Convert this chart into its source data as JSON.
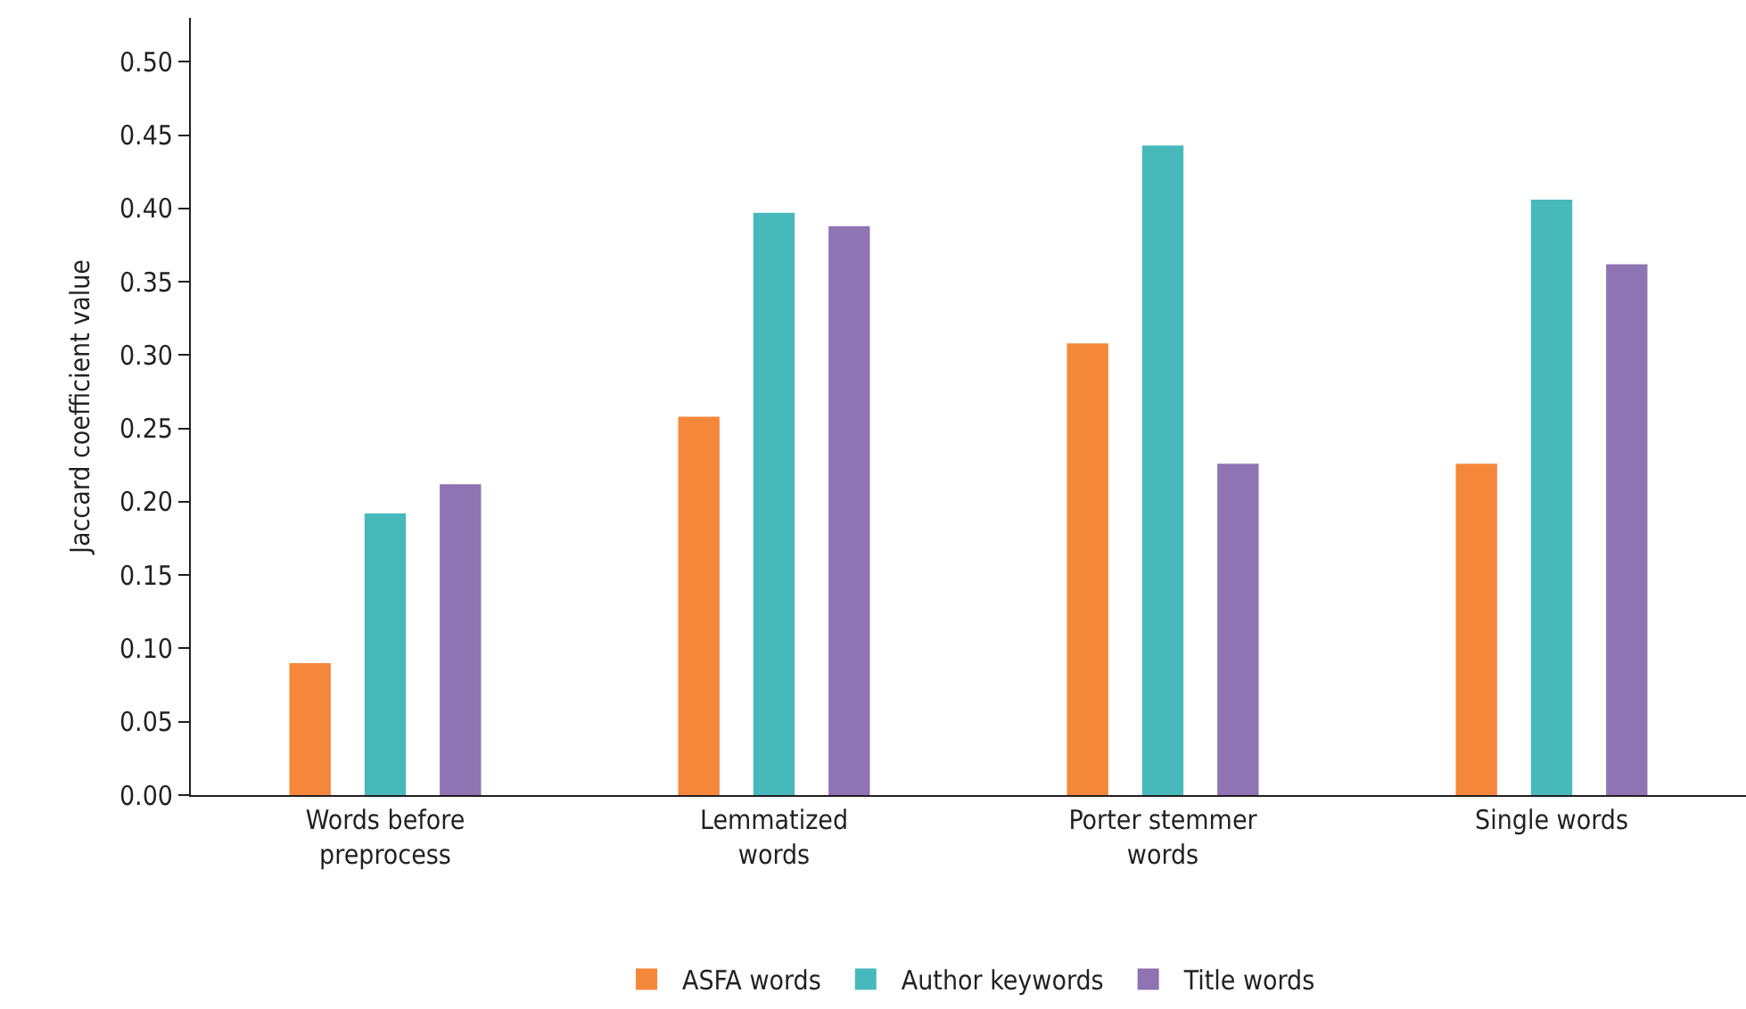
{
  "chart_data": {
    "type": "bar",
    "ylabel": "Jaccard coefficient value",
    "categories": [
      "Words before\npreprocess",
      "Lemmatized\nwords",
      "Porter stemmer\nwords",
      "Single words"
    ],
    "series": [
      {
        "name": "ASFA words",
        "color": "#f5873b",
        "values": [
          0.09,
          0.258,
          0.308,
          0.226
        ]
      },
      {
        "name": "Author keywords",
        "color": "#48b9bb",
        "values": [
          0.192,
          0.397,
          0.443,
          0.406
        ]
      },
      {
        "name": "Title words",
        "color": "#8e74b2",
        "values": [
          0.212,
          0.388,
          0.226,
          0.362
        ]
      }
    ],
    "ylim": [
      0,
      0.53
    ],
    "yticks": [
      {
        "value": 0,
        "label": "0.00"
      },
      {
        "value": 0.05,
        "label": "0.05"
      },
      {
        "value": 0.1,
        "label": "0.10"
      },
      {
        "value": 0.15,
        "label": "0.15"
      },
      {
        "value": 0.2,
        "label": "0.20"
      },
      {
        "value": 0.25,
        "label": "0.25"
      },
      {
        "value": 0.3,
        "label": "0.30"
      },
      {
        "value": 0.35,
        "label": "0.35"
      },
      {
        "value": 0.4,
        "label": "0.40"
      },
      {
        "value": 0.45,
        "label": "0.45"
      },
      {
        "value": 0.5,
        "label": "0.50"
      }
    ],
    "grid": false,
    "legend": "bottom"
  }
}
